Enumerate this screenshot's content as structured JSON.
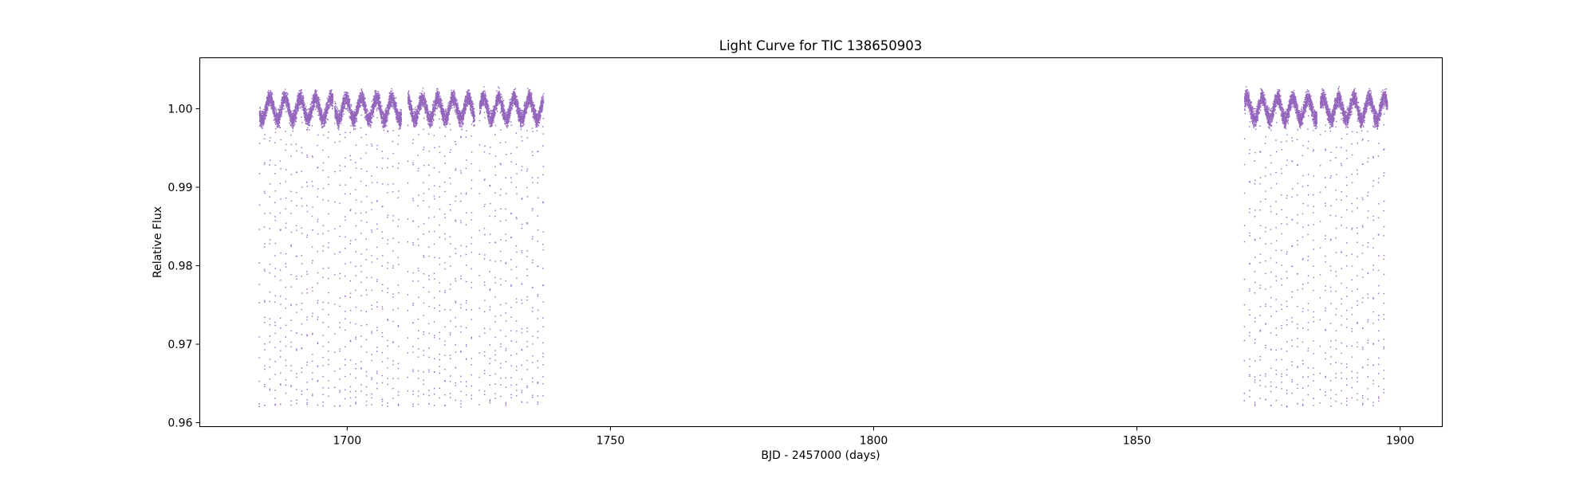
{
  "chart_data": {
    "type": "scatter",
    "title": "Light Curve for TIC 138650903",
    "xlabel": "BJD - 2457000 (days)",
    "ylabel": "Relative Flux",
    "xlim": [
      1672,
      1908
    ],
    "ylim": [
      0.9595,
      1.0065
    ],
    "xticks": [
      1700,
      1750,
      1800,
      1850,
      1900
    ],
    "xtick_labels": [
      "1700",
      "1750",
      "1800",
      "1850",
      "1900"
    ],
    "yticks": [
      0.96,
      0.97,
      0.98,
      0.99,
      1.0
    ],
    "ytick_labels": [
      "0.96",
      "0.97",
      "0.98",
      "0.99",
      "1.00"
    ],
    "grid": false,
    "legend": "none",
    "marker_color": "#9467bd",
    "series": [
      {
        "segments": [
          {
            "x_start": 1683.3,
            "x_end": 1697.3,
            "gap_start": 1697.3,
            "gap_end": 1697.6
          },
          {
            "x_start": 1697.6,
            "x_end": 1710.3,
            "gap_start": 1710.3,
            "gap_end": 1711.5
          },
          {
            "x_start": 1711.5,
            "x_end": 1724.2,
            "gap_start": 1724.2,
            "gap_end": 1725.1
          },
          {
            "x_start": 1725.1,
            "x_end": 1737.3,
            "gap_start": 1737.3,
            "gap_end": 1737.3
          },
          {
            "x_start": 1870.4,
            "x_end": 1884.2,
            "gap_start": 1884.2,
            "gap_end": 1884.8
          },
          {
            "x_start": 1884.8,
            "x_end": 1897.6,
            "gap_start": 1897.6,
            "gap_end": 1897.6
          }
        ],
        "baseline_flux": 1.0,
        "baseline_scatter": 0.0012,
        "variability_amplitude": 0.0014,
        "variability_period_days": 2.9,
        "eclipse_period_days": 1.01,
        "eclipse_depth_min_flux": 0.962
      }
    ]
  }
}
